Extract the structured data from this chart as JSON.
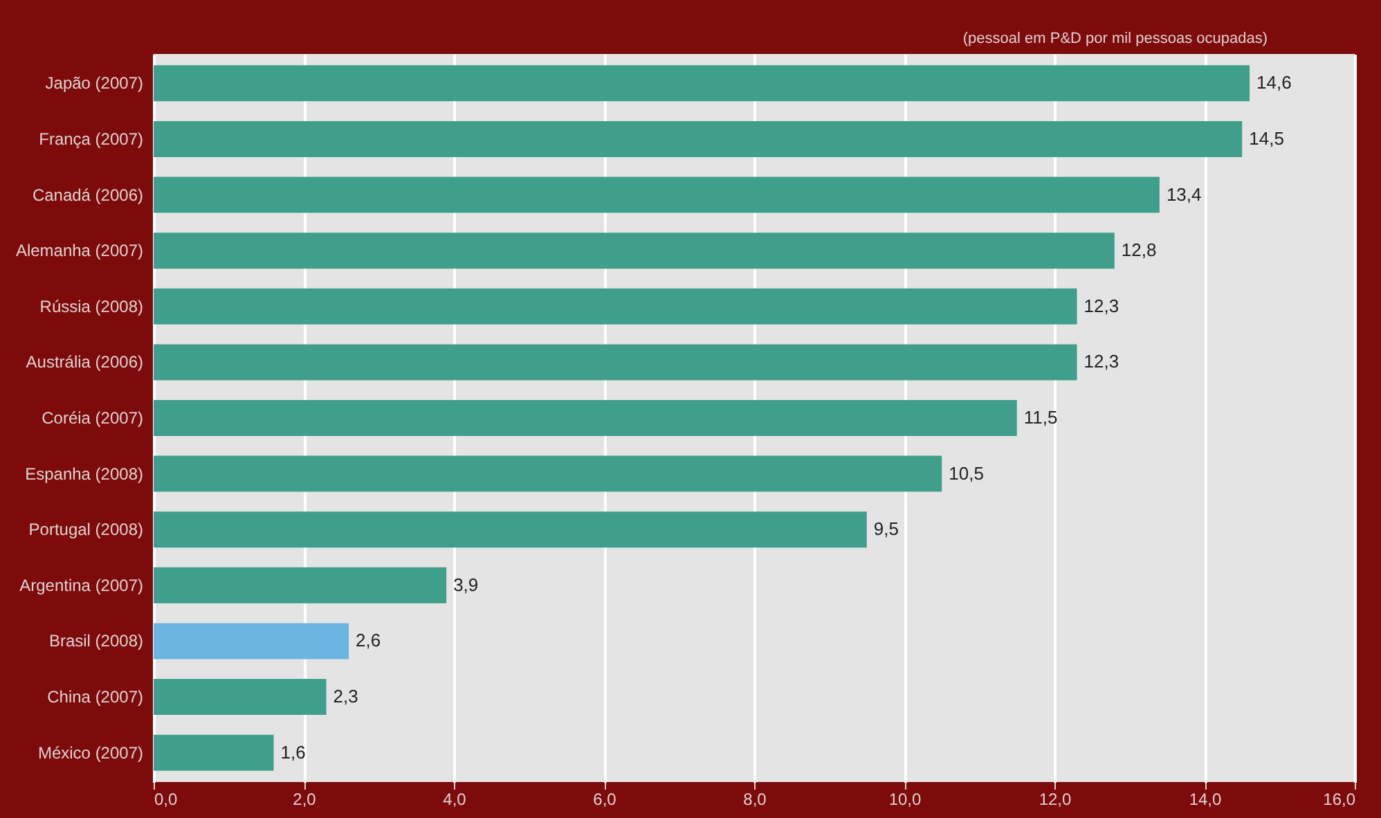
{
  "chart_data": {
    "type": "bar",
    "orientation": "horizontal",
    "categories": [
      "Japão (2007)",
      "França (2007)",
      "Canadá (2006)",
      "Alemanha (2007)",
      "Rússia (2008)",
      "Austrália (2006)",
      "Coréia (2007)",
      "Espanha (2008)",
      "Portugal (2008)",
      "Argentina (2007)",
      "Brasil (2008)",
      "China (2007)",
      "México (2007)"
    ],
    "values": [
      14.6,
      14.5,
      13.4,
      12.8,
      12.3,
      12.3,
      11.5,
      10.5,
      9.5,
      3.9,
      2.6,
      2.3,
      1.6
    ],
    "value_labels": [
      "14,6",
      "14,5",
      "13,4",
      "12,8",
      "12,3",
      "12,3",
      "11,5",
      "10,5",
      "9,5",
      "3,9",
      "2,6",
      "2,3",
      "1,6"
    ],
    "colors": [
      "#3f9f8a",
      "#3f9f8a",
      "#3f9f8a",
      "#3f9f8a",
      "#3f9f8a",
      "#3f9f8a",
      "#3f9f8a",
      "#3f9f8a",
      "#3f9f8a",
      "#3f9f8a",
      "#6bb6e0",
      "#3f9f8a",
      "#3f9f8a"
    ],
    "xlim": [
      0,
      16
    ],
    "xticks": [
      {
        "value": 0,
        "label": "0,0"
      },
      {
        "value": 2,
        "label": "2,0"
      },
      {
        "value": 4,
        "label": "4,0"
      },
      {
        "value": 6,
        "label": "6,0"
      },
      {
        "value": 8,
        "label": "8,0"
      },
      {
        "value": 10,
        "label": "10,0"
      },
      {
        "value": 12,
        "label": "12,0"
      },
      {
        "value": 14,
        "label": "14,0"
      },
      {
        "value": 16,
        "label": "16,0"
      }
    ],
    "grid": "x",
    "annotations": [
      "(pessoal em P&D por mil pessoas ocupadas)"
    ]
  }
}
